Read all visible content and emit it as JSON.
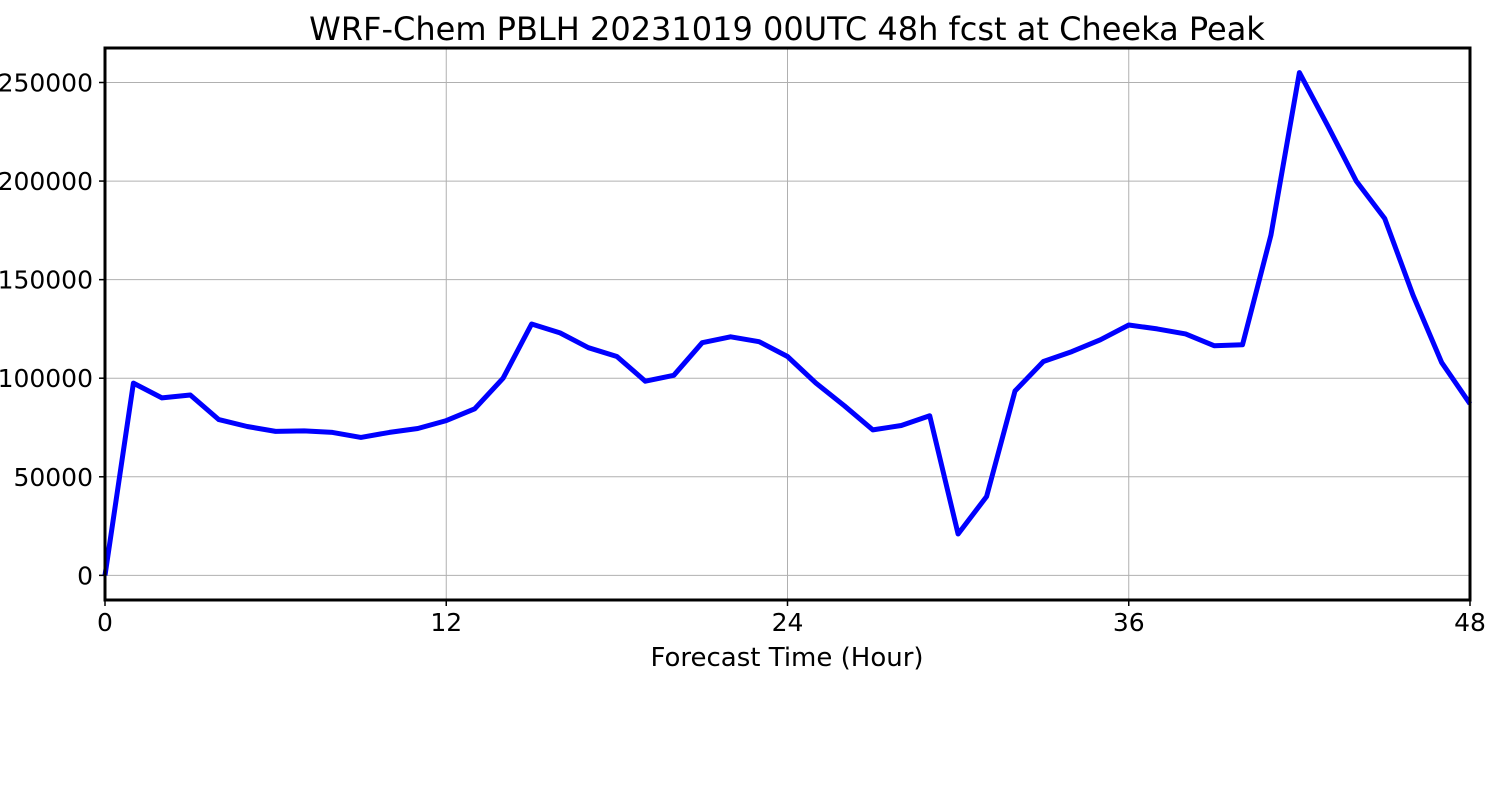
{
  "chart_data": {
    "type": "line",
    "title": "WRF-Chem PBLH  20231019 00UTC 48h fcst at Cheeka Peak",
    "xlabel": "Forecast Time (Hour)",
    "ylabel": "",
    "xlim": [
      0,
      48
    ],
    "ylim": [
      -12500,
      267500
    ],
    "xticks": [
      0,
      12,
      24,
      36,
      48
    ],
    "xtick_labels": [
      "0",
      "12",
      "24",
      "36",
      "48"
    ],
    "yticks": [
      0,
      50000,
      100000,
      150000,
      200000,
      250000
    ],
    "ytick_labels": [
      "0",
      "50000",
      "100000",
      "150000",
      "200000",
      "250000"
    ],
    "grid": true,
    "series": [
      {
        "color": "#0000ff",
        "x": [
          0,
          1,
          2,
          3,
          4,
          5,
          6,
          7,
          8,
          9,
          10,
          11,
          12,
          13,
          14,
          15,
          16,
          17,
          18,
          19,
          20,
          21,
          22,
          23,
          24,
          25,
          26,
          27,
          28,
          29,
          30,
          31,
          32,
          33,
          34,
          35,
          36,
          37,
          38,
          39,
          40,
          41,
          42,
          43,
          44,
          45,
          46,
          47,
          48
        ],
        "y": [
          0,
          97500,
          90000,
          91500,
          79000,
          75500,
          73000,
          73300,
          72500,
          70000,
          72500,
          74500,
          78500,
          84500,
          100000,
          127500,
          123000,
          115500,
          111000,
          98500,
          101500,
          118000,
          121000,
          118500,
          111000,
          97500,
          86000,
          73800,
          76000,
          81000,
          21000,
          40000,
          93500,
          108500,
          113500,
          119500,
          127000,
          125000,
          122500,
          116500,
          117000,
          172500,
          255000,
          228000,
          200000,
          181000,
          142000,
          108000,
          87000
        ]
      }
    ]
  }
}
